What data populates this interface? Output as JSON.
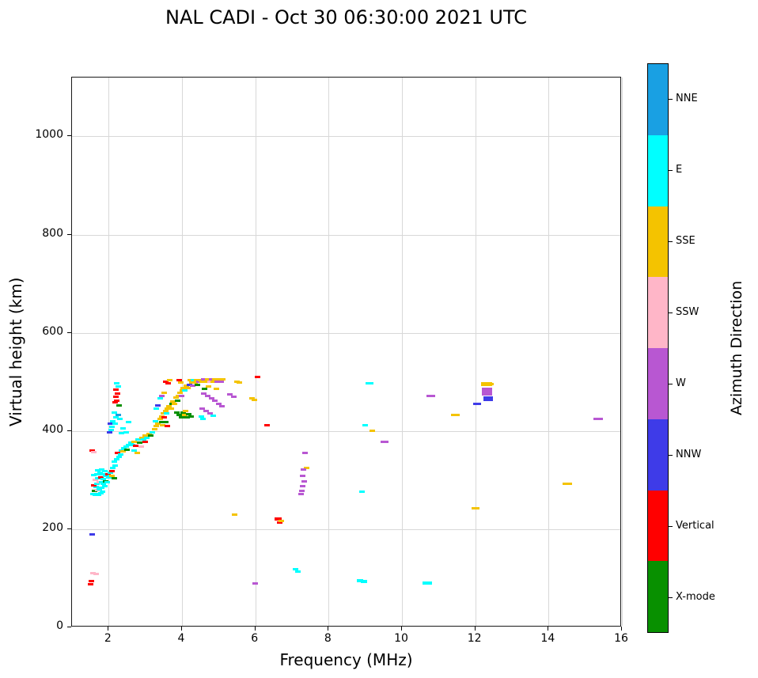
{
  "chart_data": {
    "type": "scatter",
    "title": "NAL CADI - Oct 30 06:30:00 2021 UTC",
    "xlabel": "Frequency (MHz)",
    "ylabel": "Virtual height (km)",
    "xlim": [
      1,
      16
    ],
    "ylim": [
      0,
      1120
    ],
    "xticks": [
      2,
      4,
      6,
      8,
      10,
      12,
      14,
      16
    ],
    "yticks": [
      0,
      200,
      400,
      600,
      800,
      1000
    ],
    "grid": true,
    "legend_position": "right-colorbar",
    "colorbar": {
      "label": "Azimuth Direction",
      "categories": [
        {
          "name": "NNE",
          "color": "#19A0E3"
        },
        {
          "name": "E",
          "color": "#00FFFF"
        },
        {
          "name": "SSE",
          "color": "#F4C300"
        },
        {
          "name": "SSW",
          "color": "#FFB6C8"
        },
        {
          "name": "W",
          "color": "#B857D2"
        },
        {
          "name": "NNW",
          "color": "#3E3BE8"
        },
        {
          "name": "Vertical",
          "color": "#FF0000"
        },
        {
          "name": "X-mode",
          "color": "#089000"
        }
      ]
    },
    "point_format": [
      "frequency_mhz",
      "virtual_height_km",
      "category_index",
      "dash_width_px_optional",
      "dash_height_px_optional"
    ],
    "points": [
      [
        1.5,
        88,
        6
      ],
      [
        1.52,
        95,
        6
      ],
      [
        1.58,
        110,
        3
      ],
      [
        1.66,
        108,
        3
      ],
      [
        1.55,
        190,
        5
      ],
      [
        1.55,
        360,
        6
      ],
      [
        1.6,
        357,
        3
      ],
      [
        1.58,
        272,
        1
      ],
      [
        1.63,
        270,
        1
      ],
      [
        1.68,
        272,
        1
      ],
      [
        1.73,
        270,
        1
      ],
      [
        1.78,
        273,
        1
      ],
      [
        1.83,
        276,
        1
      ],
      [
        1.62,
        278,
        7
      ],
      [
        1.7,
        280,
        3
      ],
      [
        1.75,
        282,
        1
      ],
      [
        1.8,
        285,
        1
      ],
      [
        1.66,
        286,
        1
      ],
      [
        1.6,
        290,
        6
      ],
      [
        1.68,
        292,
        1
      ],
      [
        1.74,
        295,
        3
      ],
      [
        1.8,
        296,
        1
      ],
      [
        1.86,
        292,
        1
      ],
      [
        1.9,
        288,
        1
      ],
      [
        1.63,
        300,
        3
      ],
      [
        1.7,
        303,
        1
      ],
      [
        1.78,
        305,
        6
      ],
      [
        1.85,
        302,
        1
      ],
      [
        1.92,
        298,
        7
      ],
      [
        1.97,
        295,
        1
      ],
      [
        1.6,
        310,
        1
      ],
      [
        1.68,
        312,
        1
      ],
      [
        1.76,
        315,
        1
      ],
      [
        1.84,
        312,
        1
      ],
      [
        1.92,
        308,
        1
      ],
      [
        2.0,
        305,
        1
      ],
      [
        1.7,
        320,
        1
      ],
      [
        1.8,
        322,
        1
      ],
      [
        1.9,
        318,
        1
      ],
      [
        1.98,
        312,
        6
      ],
      [
        2.05,
        308,
        1
      ],
      [
        2.05,
        315,
        1
      ],
      [
        2.1,
        318,
        6
      ],
      [
        2.12,
        325,
        1
      ],
      [
        2.18,
        330,
        1
      ],
      [
        2.15,
        338,
        1
      ],
      [
        2.22,
        342,
        1
      ],
      [
        2.28,
        348,
        1
      ],
      [
        2.25,
        355,
        6
      ],
      [
        2.32,
        352,
        1
      ],
      [
        2.35,
        360,
        1
      ],
      [
        2.4,
        358,
        2
      ],
      [
        2.42,
        365,
        1
      ],
      [
        2.48,
        368,
        1
      ],
      [
        2.5,
        362,
        7
      ],
      [
        2.55,
        372,
        1
      ],
      [
        2.6,
        376,
        1
      ],
      [
        2.1,
        308,
        2
      ],
      [
        2.16,
        304,
        7
      ],
      [
        2.02,
        398,
        5
      ],
      [
        2.06,
        402,
        1
      ],
      [
        2.1,
        408,
        1
      ],
      [
        2.05,
        415,
        5
      ],
      [
        2.12,
        420,
        1
      ],
      [
        2.18,
        415,
        1
      ],
      [
        2.2,
        428,
        1
      ],
      [
        2.26,
        432,
        0
      ],
      [
        2.15,
        438,
        1
      ],
      [
        2.3,
        425,
        1
      ],
      [
        2.4,
        405,
        1
      ],
      [
        2.48,
        398,
        1
      ],
      [
        2.55,
        418,
        1
      ],
      [
        2.35,
        395,
        1
      ],
      [
        2.18,
        458,
        6
      ],
      [
        2.22,
        462,
        6
      ],
      [
        2.2,
        470,
        6
      ],
      [
        2.24,
        476,
        6
      ],
      [
        2.2,
        484,
        6
      ],
      [
        2.26,
        490,
        1
      ],
      [
        2.22,
        497,
        1
      ],
      [
        2.28,
        452,
        7
      ],
      [
        2.65,
        372,
        1
      ],
      [
        2.7,
        378,
        2
      ],
      [
        2.74,
        370,
        6
      ],
      [
        2.8,
        382,
        1
      ],
      [
        2.84,
        377,
        7
      ],
      [
        2.9,
        386,
        2
      ],
      [
        2.95,
        382,
        1
      ],
      [
        3.0,
        390,
        2
      ],
      [
        3.05,
        386,
        1
      ],
      [
        3.1,
        394,
        2
      ],
      [
        3.0,
        378,
        6
      ],
      [
        2.88,
        368,
        3
      ],
      [
        3.15,
        390,
        7
      ],
      [
        3.2,
        398,
        1
      ],
      [
        2.7,
        360,
        1
      ],
      [
        2.78,
        356,
        2
      ],
      [
        3.25,
        404,
        2
      ],
      [
        3.3,
        410,
        2
      ],
      [
        3.28,
        420,
        1
      ],
      [
        3.35,
        415,
        2
      ],
      [
        3.4,
        424,
        2
      ],
      [
        3.44,
        418,
        7
      ],
      [
        3.46,
        430,
        2
      ],
      [
        3.5,
        436,
        2
      ],
      [
        3.52,
        428,
        6
      ],
      [
        3.56,
        440,
        2
      ],
      [
        3.6,
        446,
        2
      ],
      [
        3.58,
        436,
        1
      ],
      [
        3.64,
        450,
        2
      ],
      [
        3.7,
        446,
        2
      ],
      [
        3.72,
        456,
        7
      ],
      [
        3.76,
        460,
        2
      ],
      [
        3.8,
        456,
        2
      ],
      [
        3.55,
        500,
        6
      ],
      [
        3.62,
        497,
        6
      ],
      [
        3.66,
        504,
        2
      ],
      [
        3.52,
        478,
        2
      ],
      [
        3.46,
        472,
        4
      ],
      [
        3.4,
        466,
        1
      ],
      [
        3.34,
        452,
        5
      ],
      [
        3.3,
        446,
        1
      ],
      [
        3.48,
        412,
        2
      ],
      [
        3.56,
        418,
        7
      ],
      [
        3.6,
        410,
        6
      ],
      [
        3.84,
        468,
        2
      ],
      [
        3.9,
        472,
        2
      ],
      [
        3.88,
        462,
        7
      ],
      [
        3.94,
        478,
        2
      ],
      [
        4.0,
        482,
        2
      ],
      [
        3.98,
        472,
        4
      ],
      [
        4.04,
        488,
        2
      ],
      [
        4.08,
        483,
        1
      ],
      [
        4.12,
        492,
        2
      ],
      [
        4.16,
        488,
        2
      ],
      [
        4.2,
        494,
        5
      ],
      [
        4.22,
        503,
        2
      ],
      [
        4.26,
        498,
        2
      ],
      [
        4.3,
        493,
        4
      ],
      [
        4.32,
        504,
        1
      ],
      [
        4.36,
        499,
        2
      ],
      [
        4.4,
        504,
        2
      ],
      [
        4.42,
        494,
        7
      ],
      [
        4.46,
        500,
        4
      ],
      [
        3.86,
        438,
        7
      ],
      [
        3.92,
        433,
        7
      ],
      [
        3.98,
        428,
        7
      ],
      [
        4.04,
        438,
        7
      ],
      [
        4.08,
        432,
        2
      ],
      [
        4.14,
        428,
        7
      ],
      [
        4.18,
        434,
        7
      ],
      [
        3.92,
        504,
        6
      ],
      [
        3.96,
        498,
        2
      ],
      [
        4.24,
        430,
        7
      ],
      [
        4.1,
        440,
        2
      ],
      [
        4.5,
        504,
        2
      ],
      [
        4.56,
        500,
        2
      ],
      [
        4.6,
        505,
        4
      ],
      [
        4.66,
        501,
        2
      ],
      [
        4.7,
        506,
        2
      ],
      [
        4.76,
        501,
        3
      ],
      [
        4.8,
        506,
        4
      ],
      [
        4.86,
        501,
        2
      ],
      [
        4.9,
        506,
        2
      ],
      [
        4.96,
        501,
        4
      ],
      [
        5.0,
        506,
        2
      ],
      [
        5.06,
        500,
        4
      ],
      [
        5.12,
        505,
        2
      ],
      [
        4.6,
        476,
        4
      ],
      [
        4.7,
        471,
        4
      ],
      [
        4.8,
        466,
        4
      ],
      [
        4.9,
        461,
        4
      ],
      [
        5.0,
        456,
        4
      ],
      [
        5.1,
        450,
        4
      ],
      [
        4.56,
        446,
        4
      ],
      [
        4.66,
        441,
        4
      ],
      [
        4.76,
        436,
        4
      ],
      [
        4.86,
        431,
        1
      ],
      [
        4.62,
        486,
        7
      ],
      [
        4.72,
        490,
        2
      ],
      [
        4.52,
        430,
        1
      ],
      [
        4.58,
        425,
        1
      ],
      [
        4.94,
        486,
        2
      ],
      [
        5.3,
        474,
        4
      ],
      [
        5.42,
        470,
        4
      ],
      [
        5.5,
        500,
        2
      ],
      [
        5.56,
        498,
        2
      ],
      [
        5.9,
        467,
        2
      ],
      [
        5.98,
        464,
        2
      ],
      [
        6.06,
        510,
        6
      ],
      [
        5.43,
        229,
        2
      ],
      [
        5.99,
        89,
        4
      ],
      [
        6.31,
        411,
        6
      ],
      [
        6.62,
        220,
        6,
        9,
        4
      ],
      [
        6.66,
        214,
        6
      ],
      [
        6.7,
        217,
        2
      ],
      [
        7.35,
        355,
        4
      ],
      [
        7.4,
        325,
        2
      ],
      [
        7.32,
        322,
        4
      ],
      [
        7.3,
        308,
        4
      ],
      [
        7.33,
        298,
        4
      ],
      [
        7.3,
        288,
        4
      ],
      [
        7.27,
        278,
        4
      ],
      [
        7.24,
        272,
        4
      ],
      [
        7.1,
        118,
        1
      ],
      [
        7.16,
        113,
        1
      ],
      [
        8.85,
        95,
        1,
        8,
        4
      ],
      [
        8.96,
        93,
        1,
        8,
        4
      ],
      [
        8.92,
        277,
        1
      ],
      [
        9.0,
        412,
        1
      ],
      [
        9.2,
        400,
        2
      ],
      [
        9.12,
        497,
        1,
        10,
        3
      ],
      [
        9.52,
        378,
        4,
        10,
        3
      ],
      [
        10.7,
        90,
        1,
        12,
        4
      ],
      [
        10.78,
        472,
        4,
        11,
        3
      ],
      [
        11.45,
        432,
        2,
        11,
        3
      ],
      [
        12.0,
        242,
        2,
        10,
        3
      ],
      [
        12.05,
        456,
        5,
        10,
        3
      ],
      [
        12.3,
        496,
        2,
        14,
        5
      ],
      [
        12.42,
        495,
        2
      ],
      [
        12.33,
        481,
        4,
        13,
        10
      ],
      [
        12.35,
        466,
        5,
        12,
        6
      ],
      [
        14.52,
        293,
        2,
        12,
        3
      ],
      [
        15.35,
        425,
        4,
        12,
        3
      ]
    ]
  }
}
